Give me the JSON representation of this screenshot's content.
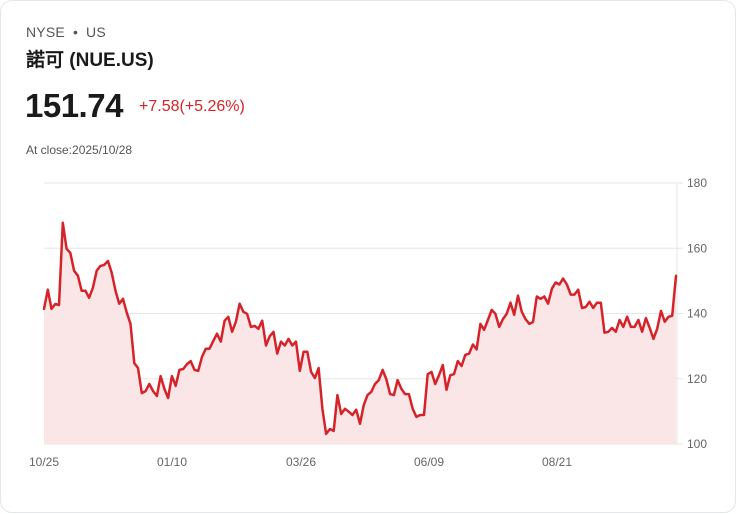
{
  "header": {
    "exchange": "NYSE",
    "separator": "•",
    "market": "US",
    "title": "諾可 (NUE.US)",
    "price": "151.74",
    "change": "+7.58(+5.26%)",
    "close_label": "At close:2025/10/28"
  },
  "colors": {
    "line": "#d6232a",
    "fill": "#fbe6e7",
    "grid": "#e6e6e6",
    "change": "#d6232a"
  },
  "chart_data": {
    "type": "area",
    "title": "諾可 (NUE.US)",
    "xlabel": "",
    "ylabel": "",
    "ylim": [
      100,
      180
    ],
    "yticks": [
      180,
      160,
      140,
      120,
      100
    ],
    "xtick_labels": [
      "10/25",
      "01/10",
      "03/26",
      "06/09",
      "08/21"
    ],
    "grid": true,
    "y_axis_position": "right",
    "series": [
      {
        "name": "NUE.US",
        "values": [
          141.4,
          147.3,
          141.4,
          142.9,
          142.6,
          167.8,
          159.8,
          158.6,
          153.1,
          151.6,
          147.0,
          147.0,
          144.8,
          147.9,
          153.1,
          154.6,
          154.9,
          156.1,
          152.5,
          147.0,
          143.0,
          144.5,
          140.2,
          136.8,
          124.8,
          123.3,
          115.6,
          116.2,
          118.4,
          116.2,
          114.7,
          120.8,
          116.9,
          114.1,
          120.8,
          117.8,
          122.7,
          123.0,
          124.5,
          125.4,
          122.7,
          122.4,
          126.7,
          129.2,
          129.2,
          131.6,
          133.8,
          131.4,
          137.8,
          139.0,
          134.4,
          137.5,
          143.0,
          140.5,
          139.9,
          135.9,
          136.2,
          135.3,
          137.8,
          130.2,
          133.0,
          134.4,
          127.7,
          131.4,
          130.2,
          132.2,
          130.2,
          131.4,
          122.4,
          128.3,
          128.3,
          122.1,
          120.2,
          123.3,
          110.8,
          103.1,
          104.6,
          104.0,
          115.0,
          109.2,
          110.8,
          109.9,
          108.9,
          110.5,
          106.2,
          112.0,
          115.0,
          116.0,
          118.4,
          119.6,
          122.7,
          119.9,
          115.3,
          115.0,
          119.6,
          116.9,
          115.3,
          115.3,
          110.8,
          108.3,
          108.9,
          108.9,
          121.4,
          122.1,
          118.4,
          121.1,
          124.2,
          116.6,
          121.1,
          121.4,
          125.4,
          123.9,
          127.3,
          127.7,
          130.5,
          129.0,
          136.8,
          135.0,
          138.0,
          141.1,
          139.9,
          135.9,
          138.3,
          139.9,
          143.3,
          139.6,
          145.5,
          140.5,
          138.3,
          136.8,
          137.4,
          145.2,
          144.5,
          145.2,
          143.0,
          147.6,
          149.5,
          148.9,
          150.7,
          148.9,
          145.8,
          145.8,
          147.3,
          141.7,
          142.0,
          143.6,
          141.7,
          143.3,
          143.3,
          134.1,
          134.4,
          135.6,
          134.4,
          138.0,
          135.9,
          139.0,
          135.9,
          135.9,
          138.0,
          134.4,
          138.6,
          135.6,
          132.2,
          135.3,
          140.8,
          137.5,
          139.0,
          139.3,
          151.6
        ]
      }
    ]
  }
}
